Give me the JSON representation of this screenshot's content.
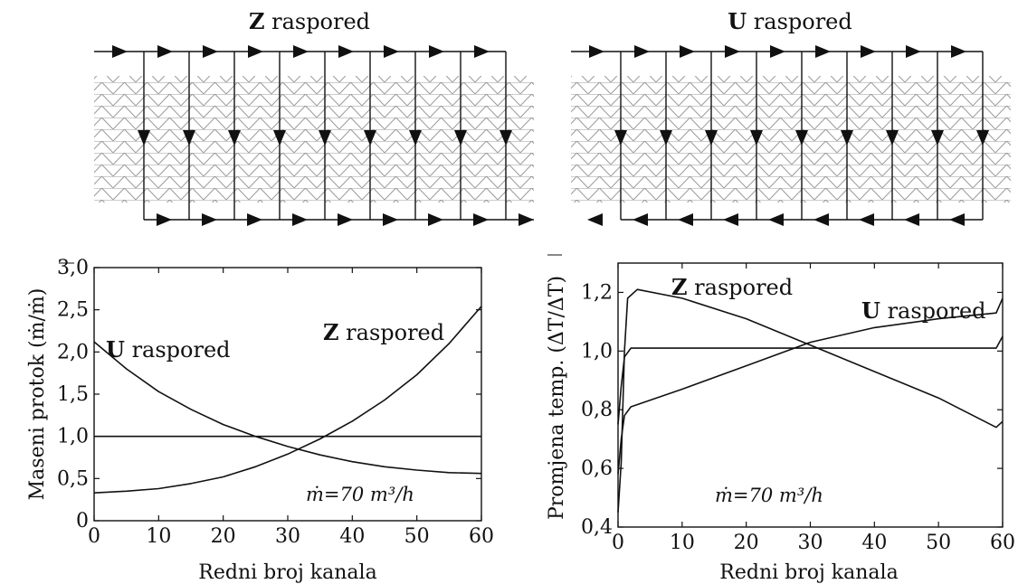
{
  "schematics": [
    {
      "title_bold": "Z",
      "title_rest": " raspored",
      "arrangement": "Z",
      "channels": 9
    },
    {
      "title_bold": "U",
      "title_rest": " raspored",
      "arrangement": "U",
      "channels": 9
    }
  ],
  "chart_data": [
    {
      "type": "line",
      "xlabel": "Redni broj kanala",
      "ylabel": "Maseni protok (ṁ/ṁ)",
      "xlim": [
        0,
        60
      ],
      "ylim": [
        0,
        3.0
      ],
      "xticks": [
        "0",
        "10",
        "20",
        "30",
        "40",
        "50",
        "60"
      ],
      "yticks": [
        "0",
        "0,5",
        "1,0",
        "1,5",
        "2,0",
        "2,5",
        "3,0"
      ],
      "grid": false,
      "annotation": "ṁ=70 m³/h",
      "series": [
        {
          "name": "U raspored",
          "name_bold": "U",
          "name_rest": " raspored",
          "x": [
            0,
            5,
            10,
            15,
            20,
            25,
            30,
            35,
            40,
            45,
            50,
            55,
            60
          ],
          "y": [
            2.12,
            1.8,
            1.53,
            1.32,
            1.14,
            1.0,
            0.88,
            0.78,
            0.7,
            0.64,
            0.6,
            0.57,
            0.56
          ]
        },
        {
          "name": "Z raspored",
          "name_bold": "Z",
          "name_rest": " raspored",
          "x": [
            0,
            5,
            10,
            15,
            20,
            25,
            30,
            35,
            40,
            45,
            50,
            55,
            60
          ],
          "y": [
            0.33,
            0.35,
            0.38,
            0.44,
            0.52,
            0.64,
            0.79,
            0.97,
            1.18,
            1.43,
            1.73,
            2.1,
            2.54
          ]
        },
        {
          "name": "",
          "x": [
            0,
            60
          ],
          "y": [
            1.0,
            1.0
          ]
        }
      ]
    },
    {
      "type": "line",
      "xlabel": "Redni broj kanala",
      "ylabel": "Promjena temp. (ΔT/ΔT)",
      "xlim": [
        0,
        60
      ],
      "ylim": [
        0.4,
        1.3
      ],
      "xticks": [
        "0",
        "10",
        "20",
        "30",
        "40",
        "50",
        "60"
      ],
      "yticks": [
        "0,4",
        "0,6",
        "0,8",
        "1,0",
        "1,2"
      ],
      "grid": false,
      "annotation": "ṁ=70 m³/h",
      "series": [
        {
          "name": "Z raspored",
          "name_bold": "Z",
          "name_rest": " raspored",
          "x": [
            0,
            0.5,
            1,
            1.5,
            3,
            10,
            20,
            30,
            40,
            50,
            59,
            60
          ],
          "y": [
            0.45,
            0.62,
            1.0,
            1.18,
            1.21,
            1.18,
            1.11,
            1.02,
            0.93,
            0.84,
            0.74,
            0.76
          ]
        },
        {
          "name": "U raspored",
          "name_bold": "U",
          "name_rest": " raspored",
          "x": [
            0,
            0.5,
            1,
            2,
            10,
            20,
            30,
            40,
            50,
            59,
            60
          ],
          "y": [
            0.58,
            0.7,
            0.78,
            0.81,
            0.87,
            0.95,
            1.03,
            1.08,
            1.11,
            1.13,
            1.18
          ]
        },
        {
          "name": "",
          "x": [
            0,
            0.5,
            1,
            2,
            30,
            59,
            60
          ],
          "y": [
            0.75,
            0.88,
            0.98,
            1.01,
            1.01,
            1.01,
            1.05
          ]
        }
      ]
    }
  ]
}
